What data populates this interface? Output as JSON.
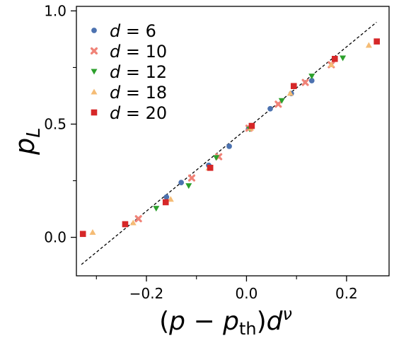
{
  "chart_data": {
    "type": "scatter",
    "xlabel_parts": {
      "open": "(",
      "p": "p",
      "minus": " − ",
      "p2": "p",
      "sub": "th",
      "close": ")",
      "d": "d",
      "sup": "ν"
    },
    "ylabel_parts": {
      "p": "p",
      "sub": "L"
    },
    "xlim": [
      -0.34,
      0.285
    ],
    "ylim": [
      -0.17,
      1.02
    ],
    "x_ticks": [
      -0.2,
      0.0,
      0.2
    ],
    "x_tick_labels": [
      "−0.2",
      "0.0",
      "0.2"
    ],
    "x_minor_ticks": [
      -0.3,
      -0.1,
      0.1
    ],
    "y_ticks": [
      0.0,
      0.5,
      1.0
    ],
    "y_tick_labels": [
      "0.0",
      "0.5",
      "1.0"
    ],
    "y_minor_ticks": [
      0.25,
      0.75
    ],
    "grid": false,
    "legend_position": "top-left",
    "reference_line": {
      "style": "dashed",
      "color": "#000000",
      "x": [
        -0.33,
        0.26
      ],
      "y": [
        -0.12,
        0.95
      ]
    },
    "series": [
      {
        "name": "d = 6",
        "label_var": "d",
        "label_eq": " = ",
        "label_val": "6",
        "marker": "circle",
        "color": "#4c72b0",
        "x": [
          -0.16,
          -0.1305,
          -0.0755,
          -0.0345,
          0.0045,
          0.0475,
          0.0895,
          0.1305
        ],
        "y": [
          0.178,
          0.242,
          0.318,
          0.402,
          0.482,
          0.568,
          0.635,
          0.692
        ]
      },
      {
        "name": "d = 10",
        "label_var": "d",
        "label_eq": " = ",
        "label_val": "10",
        "marker": "x",
        "color": "#f08378",
        "x": [
          -0.216,
          -0.1095,
          -0.0555,
          0.005,
          0.0635,
          0.1175,
          0.1695
        ],
        "y": [
          0.082,
          0.262,
          0.356,
          0.482,
          0.588,
          0.684,
          0.762
        ]
      },
      {
        "name": "d = 12",
        "label_var": "d",
        "label_eq": " = ",
        "label_val": "12",
        "marker": "triangle-down",
        "color": "#2ca02c",
        "x": [
          -0.1805,
          -0.1155,
          -0.0605,
          0.0065,
          0.0705,
          0.1305,
          0.1925
        ],
        "y": [
          0.128,
          0.228,
          0.352,
          0.478,
          0.604,
          0.712,
          0.792
        ]
      },
      {
        "name": "d = 18",
        "label_var": "d",
        "label_eq": " = ",
        "label_val": "18",
        "marker": "triangle-up",
        "color": "#f5bc75",
        "x": [
          -0.3075,
          -0.2265,
          -0.1515,
          -0.0755,
          0.0085,
          0.0875,
          0.1695,
          0.2445
        ],
        "y": [
          0.022,
          0.064,
          0.168,
          0.306,
          0.482,
          0.636,
          0.762,
          0.848
        ]
      },
      {
        "name": "d = 20",
        "label_var": "d",
        "label_eq": " = ",
        "label_val": "20",
        "marker": "square",
        "color": "#d62728",
        "x": [
          -0.327,
          -0.2425,
          -0.1615,
          -0.0725,
          0.0105,
          0.0945,
          0.1765,
          0.2605
        ],
        "y": [
          0.015,
          0.058,
          0.155,
          0.307,
          0.492,
          0.668,
          0.788,
          0.865
        ]
      }
    ]
  }
}
